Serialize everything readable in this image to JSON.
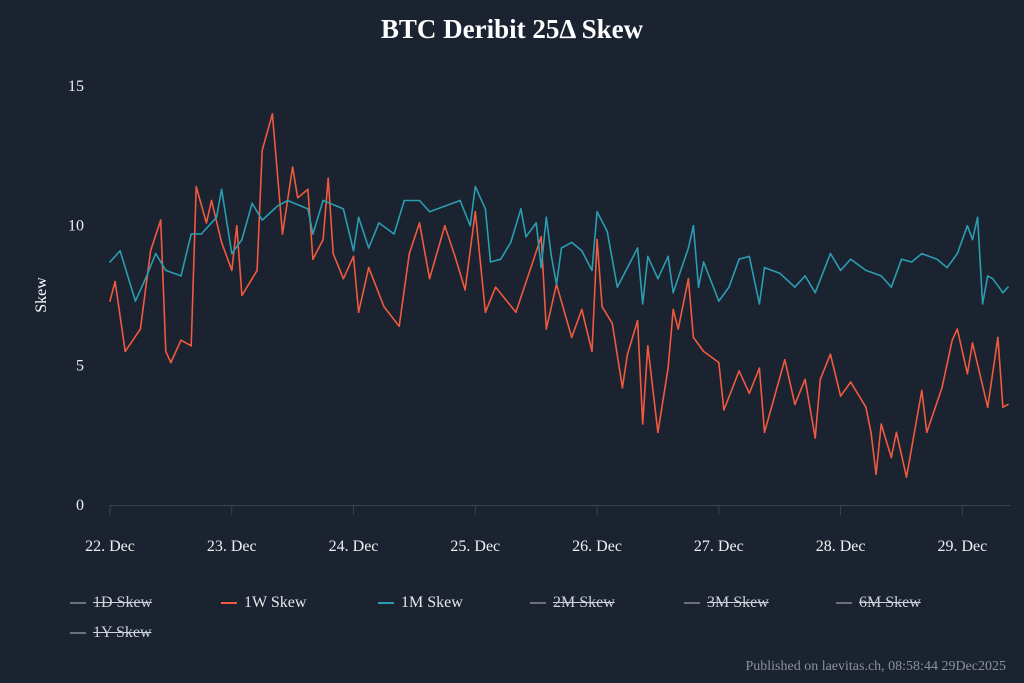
{
  "chart_data": {
    "type": "line",
    "title": "BTC Deribit 25Δ Skew",
    "xlabel": "",
    "ylabel": "Skew",
    "ylim": [
      0,
      15
    ],
    "yticks": [
      "0",
      "5",
      "10",
      "15"
    ],
    "xlim": [
      "2025-12-22T00:00",
      "2025-12-29T09:00"
    ],
    "xticks": [
      {
        "date": "2025-12-22T00:00",
        "label": "22. Dec"
      },
      {
        "date": "2025-12-23T00:00",
        "label": "23. Dec"
      },
      {
        "date": "2025-12-24T00:00",
        "label": "24. Dec"
      },
      {
        "date": "2025-12-25T00:00",
        "label": "25. Dec"
      },
      {
        "date": "2025-12-26T00:00",
        "label": "26. Dec"
      },
      {
        "date": "2025-12-27T00:00",
        "label": "27. Dec"
      },
      {
        "date": "2025-12-28T00:00",
        "label": "28. Dec"
      },
      {
        "date": "2025-12-29T00:00",
        "label": "29. Dec"
      }
    ],
    "grid": false,
    "legend_placement": "bottom",
    "background": "#1b2230",
    "series": [
      {
        "name": "1D Skew",
        "hidden": true,
        "color": "#6b7079",
        "points": []
      },
      {
        "name": "1W Skew",
        "hidden": false,
        "color": "#f05a3e",
        "points": [
          [
            "2025-12-22T00:00",
            7.3
          ],
          [
            "2025-12-22T01:00",
            8.0
          ],
          [
            "2025-12-22T03:00",
            5.5
          ],
          [
            "2025-12-22T06:00",
            6.3
          ],
          [
            "2025-12-22T08:00",
            9.1
          ],
          [
            "2025-12-22T10:00",
            10.2
          ],
          [
            "2025-12-22T11:00",
            5.5
          ],
          [
            "2025-12-22T12:00",
            5.1
          ],
          [
            "2025-12-22T14:00",
            5.9
          ],
          [
            "2025-12-22T16:00",
            5.7
          ],
          [
            "2025-12-22T17:00",
            11.4
          ],
          [
            "2025-12-22T19:00",
            10.1
          ],
          [
            "2025-12-22T20:00",
            10.9
          ],
          [
            "2025-12-22T22:00",
            9.4
          ],
          [
            "2025-12-23T00:00",
            8.4
          ],
          [
            "2025-12-23T01:00",
            10.0
          ],
          [
            "2025-12-23T02:00",
            7.5
          ],
          [
            "2025-12-23T04:00",
            8.1
          ],
          [
            "2025-12-23T05:00",
            8.4
          ],
          [
            "2025-12-23T06:00",
            12.7
          ],
          [
            "2025-12-23T08:00",
            14.0
          ],
          [
            "2025-12-23T10:00",
            9.7
          ],
          [
            "2025-12-23T12:00",
            12.1
          ],
          [
            "2025-12-23T13:00",
            11.0
          ],
          [
            "2025-12-23T15:00",
            11.3
          ],
          [
            "2025-12-23T16:00",
            8.8
          ],
          [
            "2025-12-23T18:00",
            9.5
          ],
          [
            "2025-12-23T19:00",
            11.7
          ],
          [
            "2025-12-23T20:00",
            9.0
          ],
          [
            "2025-12-23T22:00",
            8.1
          ],
          [
            "2025-12-24T00:00",
            8.9
          ],
          [
            "2025-12-24T01:00",
            6.9
          ],
          [
            "2025-12-24T03:00",
            8.5
          ],
          [
            "2025-12-24T06:00",
            7.1
          ],
          [
            "2025-12-24T09:00",
            6.4
          ],
          [
            "2025-12-24T11:00",
            9.0
          ],
          [
            "2025-12-24T13:00",
            10.1
          ],
          [
            "2025-12-24T15:00",
            8.1
          ],
          [
            "2025-12-24T18:00",
            10.0
          ],
          [
            "2025-12-24T20:00",
            8.9
          ],
          [
            "2025-12-24T22:00",
            7.7
          ],
          [
            "2025-12-25T00:00",
            10.5
          ],
          [
            "2025-12-25T02:00",
            6.9
          ],
          [
            "2025-12-25T04:00",
            7.8
          ],
          [
            "2025-12-25T08:00",
            6.9
          ],
          [
            "2025-12-25T13:00",
            9.6
          ],
          [
            "2025-12-25T14:00",
            6.3
          ],
          [
            "2025-12-25T16:00",
            7.9
          ],
          [
            "2025-12-25T19:00",
            6.0
          ],
          [
            "2025-12-25T21:00",
            7.0
          ],
          [
            "2025-12-25T23:00",
            5.5
          ],
          [
            "2025-12-26T00:00",
            9.5
          ],
          [
            "2025-12-26T01:00",
            7.1
          ],
          [
            "2025-12-26T03:00",
            6.5
          ],
          [
            "2025-12-26T05:00",
            4.2
          ],
          [
            "2025-12-26T06:00",
            5.4
          ],
          [
            "2025-12-26T08:00",
            6.6
          ],
          [
            "2025-12-26T09:00",
            2.9
          ],
          [
            "2025-12-26T10:00",
            5.7
          ],
          [
            "2025-12-26T12:00",
            2.6
          ],
          [
            "2025-12-26T14:00",
            4.9
          ],
          [
            "2025-12-26T15:00",
            7.0
          ],
          [
            "2025-12-26T16:00",
            6.3
          ],
          [
            "2025-12-26T18:00",
            8.1
          ],
          [
            "2025-12-26T19:00",
            6.0
          ],
          [
            "2025-12-26T21:00",
            5.5
          ],
          [
            "2025-12-27T00:00",
            5.1
          ],
          [
            "2025-12-27T01:00",
            3.4
          ],
          [
            "2025-12-27T04:00",
            4.8
          ],
          [
            "2025-12-27T06:00",
            4.0
          ],
          [
            "2025-12-27T08:00",
            4.9
          ],
          [
            "2025-12-27T09:00",
            2.6
          ],
          [
            "2025-12-27T13:00",
            5.2
          ],
          [
            "2025-12-27T15:00",
            3.6
          ],
          [
            "2025-12-27T17:00",
            4.5
          ],
          [
            "2025-12-27T19:00",
            2.4
          ],
          [
            "2025-12-27T20:00",
            4.5
          ],
          [
            "2025-12-27T22:00",
            5.4
          ],
          [
            "2025-12-28T00:00",
            3.9
          ],
          [
            "2025-12-28T02:00",
            4.4
          ],
          [
            "2025-12-28T05:00",
            3.5
          ],
          [
            "2025-12-28T06:00",
            2.6
          ],
          [
            "2025-12-28T07:00",
            1.1
          ],
          [
            "2025-12-28T08:00",
            2.9
          ],
          [
            "2025-12-28T10:00",
            1.7
          ],
          [
            "2025-12-28T11:00",
            2.6
          ],
          [
            "2025-12-28T13:00",
            1.0
          ],
          [
            "2025-12-28T16:00",
            4.1
          ],
          [
            "2025-12-28T17:00",
            2.6
          ],
          [
            "2025-12-28T20:00",
            4.2
          ],
          [
            "2025-12-28T22:00",
            5.9
          ],
          [
            "2025-12-28T23:00",
            6.3
          ],
          [
            "2025-12-29T01:00",
            4.7
          ],
          [
            "2025-12-29T02:00",
            5.8
          ],
          [
            "2025-12-29T05:00",
            3.5
          ],
          [
            "2025-12-29T07:00",
            6.0
          ],
          [
            "2025-12-29T08:00",
            3.5
          ],
          [
            "2025-12-29T09:00",
            3.6
          ]
        ]
      },
      {
        "name": "1M Skew",
        "hidden": false,
        "color": "#2a9db0",
        "points": [
          [
            "2025-12-22T00:00",
            8.7
          ],
          [
            "2025-12-22T02:00",
            9.1
          ],
          [
            "2025-12-22T05:00",
            7.3
          ],
          [
            "2025-12-22T07:00",
            8.1
          ],
          [
            "2025-12-22T09:00",
            9.0
          ],
          [
            "2025-12-22T11:00",
            8.4
          ],
          [
            "2025-12-22T14:00",
            8.2
          ],
          [
            "2025-12-22T16:00",
            9.7
          ],
          [
            "2025-12-22T18:00",
            9.7
          ],
          [
            "2025-12-22T21:00",
            10.3
          ],
          [
            "2025-12-22T22:00",
            11.3
          ],
          [
            "2025-12-23T00:00",
            9.0
          ],
          [
            "2025-12-23T02:00",
            9.5
          ],
          [
            "2025-12-23T04:00",
            10.8
          ],
          [
            "2025-12-23T06:00",
            10.2
          ],
          [
            "2025-12-23T09:00",
            10.7
          ],
          [
            "2025-12-23T11:00",
            10.9
          ],
          [
            "2025-12-23T15:00",
            10.6
          ],
          [
            "2025-12-23T16:00",
            9.7
          ],
          [
            "2025-12-23T18:00",
            10.9
          ],
          [
            "2025-12-23T22:00",
            10.6
          ],
          [
            "2025-12-24T00:00",
            9.1
          ],
          [
            "2025-12-24T01:00",
            10.3
          ],
          [
            "2025-12-24T03:00",
            9.2
          ],
          [
            "2025-12-24T05:00",
            10.1
          ],
          [
            "2025-12-24T08:00",
            9.7
          ],
          [
            "2025-12-24T10:00",
            10.9
          ],
          [
            "2025-12-24T13:00",
            10.9
          ],
          [
            "2025-12-24T15:00",
            10.5
          ],
          [
            "2025-12-24T18:00",
            10.7
          ],
          [
            "2025-12-24T21:00",
            10.9
          ],
          [
            "2025-12-24T23:00",
            10.0
          ],
          [
            "2025-12-25T00:00",
            11.4
          ],
          [
            "2025-12-25T02:00",
            10.6
          ],
          [
            "2025-12-25T03:00",
            8.7
          ],
          [
            "2025-12-25T05:00",
            8.8
          ],
          [
            "2025-12-25T07:00",
            9.4
          ],
          [
            "2025-12-25T09:00",
            10.6
          ],
          [
            "2025-12-25T10:00",
            9.6
          ],
          [
            "2025-12-25T12:00",
            10.1
          ],
          [
            "2025-12-25T13:00",
            8.5
          ],
          [
            "2025-12-25T14:00",
            10.3
          ],
          [
            "2025-12-25T15:00",
            8.9
          ],
          [
            "2025-12-25T16:00",
            7.9
          ],
          [
            "2025-12-25T17:00",
            9.2
          ],
          [
            "2025-12-25T19:00",
            9.4
          ],
          [
            "2025-12-25T21:00",
            9.1
          ],
          [
            "2025-12-25T23:00",
            8.4
          ],
          [
            "2025-12-26T00:00",
            10.5
          ],
          [
            "2025-12-26T02:00",
            9.8
          ],
          [
            "2025-12-26T04:00",
            7.8
          ],
          [
            "2025-12-26T06:00",
            8.5
          ],
          [
            "2025-12-26T08:00",
            9.2
          ],
          [
            "2025-12-26T09:00",
            7.2
          ],
          [
            "2025-12-26T10:00",
            8.9
          ],
          [
            "2025-12-26T12:00",
            8.1
          ],
          [
            "2025-12-26T14:00",
            8.9
          ],
          [
            "2025-12-26T15:00",
            7.6
          ],
          [
            "2025-12-26T18:00",
            9.2
          ],
          [
            "2025-12-26T19:00",
            10.0
          ],
          [
            "2025-12-26T20:00",
            7.8
          ],
          [
            "2025-12-26T21:00",
            8.7
          ],
          [
            "2025-12-27T00:00",
            7.3
          ],
          [
            "2025-12-27T02:00",
            7.8
          ],
          [
            "2025-12-27T04:00",
            8.8
          ],
          [
            "2025-12-27T06:00",
            8.9
          ],
          [
            "2025-12-27T08:00",
            7.2
          ],
          [
            "2025-12-27T09:00",
            8.5
          ],
          [
            "2025-12-27T12:00",
            8.3
          ],
          [
            "2025-12-27T15:00",
            7.8
          ],
          [
            "2025-12-27T17:00",
            8.2
          ],
          [
            "2025-12-27T19:00",
            7.6
          ],
          [
            "2025-12-27T22:00",
            9.0
          ],
          [
            "2025-12-28T00:00",
            8.4
          ],
          [
            "2025-12-28T02:00",
            8.8
          ],
          [
            "2025-12-28T05:00",
            8.4
          ],
          [
            "2025-12-28T08:00",
            8.2
          ],
          [
            "2025-12-28T10:00",
            7.8
          ],
          [
            "2025-12-28T12:00",
            8.8
          ],
          [
            "2025-12-28T14:00",
            8.7
          ],
          [
            "2025-12-28T16:00",
            9.0
          ],
          [
            "2025-12-28T19:00",
            8.8
          ],
          [
            "2025-12-28T21:00",
            8.5
          ],
          [
            "2025-12-28T23:00",
            9.0
          ],
          [
            "2025-12-29T01:00",
            10.0
          ],
          [
            "2025-12-29T02:00",
            9.5
          ],
          [
            "2025-12-29T03:00",
            10.3
          ],
          [
            "2025-12-29T04:00",
            7.2
          ],
          [
            "2025-12-29T05:00",
            8.2
          ],
          [
            "2025-12-29T06:00",
            8.1
          ],
          [
            "2025-12-29T08:00",
            7.6
          ],
          [
            "2025-12-29T09:00",
            7.8
          ]
        ]
      },
      {
        "name": "2M Skew",
        "hidden": true,
        "color": "#6b7079",
        "points": []
      },
      {
        "name": "3M Skew",
        "hidden": true,
        "color": "#6b7079",
        "points": []
      },
      {
        "name": "6M Skew",
        "hidden": true,
        "color": "#6b7079",
        "points": []
      },
      {
        "name": "1Y Skew",
        "hidden": true,
        "color": "#6b7079",
        "points": []
      }
    ]
  },
  "footer": "Published on laevitas.ch, 08:58:44 29Dec2025"
}
